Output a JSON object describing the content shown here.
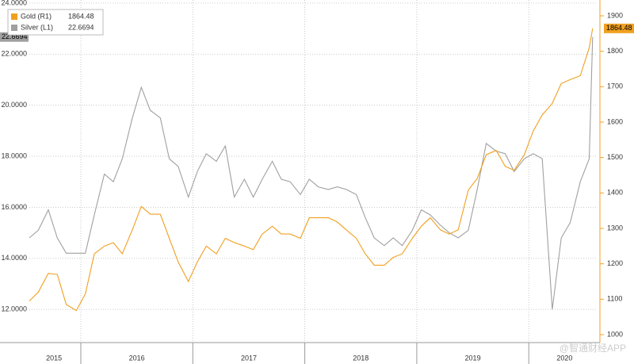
{
  "chart_data": {
    "type": "line",
    "x": [
      2015.54,
      2015.62,
      2015.71,
      2015.79,
      2015.87,
      2015.96,
      2016.04,
      2016.12,
      2016.21,
      2016.29,
      2016.37,
      2016.46,
      2016.54,
      2016.62,
      2016.71,
      2016.79,
      2016.87,
      2016.96,
      2017.04,
      2017.12,
      2017.21,
      2017.29,
      2017.37,
      2017.46,
      2017.54,
      2017.62,
      2017.71,
      2017.79,
      2017.87,
      2017.96,
      2018.04,
      2018.12,
      2018.21,
      2018.29,
      2018.37,
      2018.46,
      2018.54,
      2018.62,
      2018.71,
      2018.79,
      2018.87,
      2018.96,
      2019.04,
      2019.12,
      2019.21,
      2019.29,
      2019.37,
      2019.46,
      2019.54,
      2019.62,
      2019.71,
      2019.79,
      2019.87,
      2019.96,
      2020.04,
      2020.12,
      2020.21,
      2020.29,
      2020.37,
      2020.46,
      2020.54,
      2020.57
    ],
    "series": [
      {
        "name": "Gold (R1)",
        "color": "#f0a020",
        "axis": "y2",
        "values": [
          1095,
          1120,
          1173,
          1170,
          1085,
          1068,
          1115,
          1228,
          1250,
          1260,
          1228,
          1296,
          1362,
          1340,
          1340,
          1272,
          1205,
          1150,
          1205,
          1250,
          1228,
          1272,
          1260,
          1250,
          1240,
          1284,
          1306,
          1284,
          1284,
          1272,
          1330,
          1330,
          1330,
          1318,
          1296,
          1272,
          1228,
          1196,
          1196,
          1218,
          1228,
          1272,
          1306,
          1330,
          1296,
          1284,
          1296,
          1408,
          1441,
          1508,
          1520,
          1475,
          1464,
          1508,
          1575,
          1620,
          1653,
          1709,
          1720,
          1731,
          1810,
          1864.48
        ]
      },
      {
        "name": "Silver (L1)",
        "color": "#a0a0a0",
        "values": [
          14.8,
          15.1,
          15.9,
          14.8,
          14.2,
          14.2,
          14.2,
          15.7,
          17.3,
          17.0,
          17.9,
          19.5,
          20.7,
          19.8,
          19.5,
          17.9,
          17.6,
          16.4,
          17.4,
          18.1,
          17.8,
          18.4,
          16.4,
          17.1,
          16.4,
          17.1,
          17.8,
          17.1,
          17.0,
          16.5,
          17.1,
          16.8,
          16.7,
          16.8,
          16.7,
          16.5,
          15.6,
          14.8,
          14.5,
          14.8,
          14.5,
          15.1,
          15.9,
          15.7,
          15.3,
          15.0,
          14.8,
          15.1,
          16.7,
          18.5,
          18.2,
          18.1,
          17.4,
          17.9,
          18.1,
          17.9,
          12.0,
          14.8,
          15.4,
          17.0,
          17.9,
          22.6694
        ]
      }
    ],
    "xlim": [
      2015.54,
      2020.6
    ],
    "xticks": [
      {
        "value": 2015.76,
        "label": "2015"
      },
      {
        "value": 2016.5,
        "label": "2016"
      },
      {
        "value": 2017.5,
        "label": "2017"
      },
      {
        "value": 2018.5,
        "label": "2018"
      },
      {
        "value": 2019.5,
        "label": "2019"
      },
      {
        "value": 2020.32,
        "label": "2020"
      }
    ],
    "x_grid": [
      2016,
      2017,
      2018,
      2019,
      2020
    ],
    "ylim": [
      10.7,
      24.12
    ],
    "yticks": [
      {
        "value": 12,
        "label": "12.0000"
      },
      {
        "value": 14,
        "label": "14.0000"
      },
      {
        "value": 16,
        "label": "16.0000"
      },
      {
        "value": 18,
        "label": "18.0000"
      },
      {
        "value": 20,
        "label": "20.0000"
      },
      {
        "value": 22,
        "label": "22.0000"
      },
      {
        "value": 24,
        "label": "24.0000"
      }
    ],
    "y2lim": [
      977.6,
      1944.7
    ],
    "y2ticks": [
      1000,
      1100,
      1200,
      1300,
      1400,
      1500,
      1600,
      1700,
      1800,
      1900
    ],
    "grid": true,
    "watermark": "@智通财经APP"
  }
}
